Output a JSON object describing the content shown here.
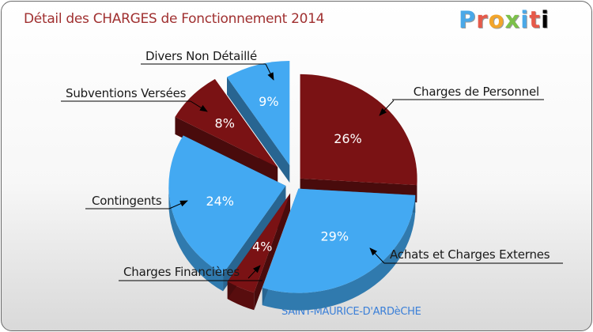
{
  "header": {
    "title": "Détail des CHARGES de Fonctionnement 2014",
    "brand": [
      "P",
      "r",
      "o",
      "x",
      "i",
      "t",
      "i"
    ]
  },
  "footer": {
    "commune": "SAINT-MAURICE-D'ARDèCHE"
  },
  "chart_data": {
    "type": "pie",
    "title": "Détail des CHARGES de Fonctionnement 2014",
    "unit": "%",
    "slices": [
      {
        "label": "Charges de Personnel",
        "value": 26,
        "value_label": "26%",
        "color": "#7a1214"
      },
      {
        "label": "Achats et Charges Externes",
        "value": 29,
        "value_label": "29%",
        "color": "#43a9f2"
      },
      {
        "label": "Charges Financières",
        "value": 4,
        "value_label": "4%",
        "color": "#7a1214"
      },
      {
        "label": "Contingents",
        "value": 24,
        "value_label": "24%",
        "color": "#43a9f2"
      },
      {
        "label": "Subventions Versées",
        "value": 8,
        "value_label": "8%",
        "color": "#7a1214"
      },
      {
        "label": "Divers Non Détaillé",
        "value": 9,
        "value_label": "9%",
        "color": "#43a9f2"
      }
    ]
  }
}
